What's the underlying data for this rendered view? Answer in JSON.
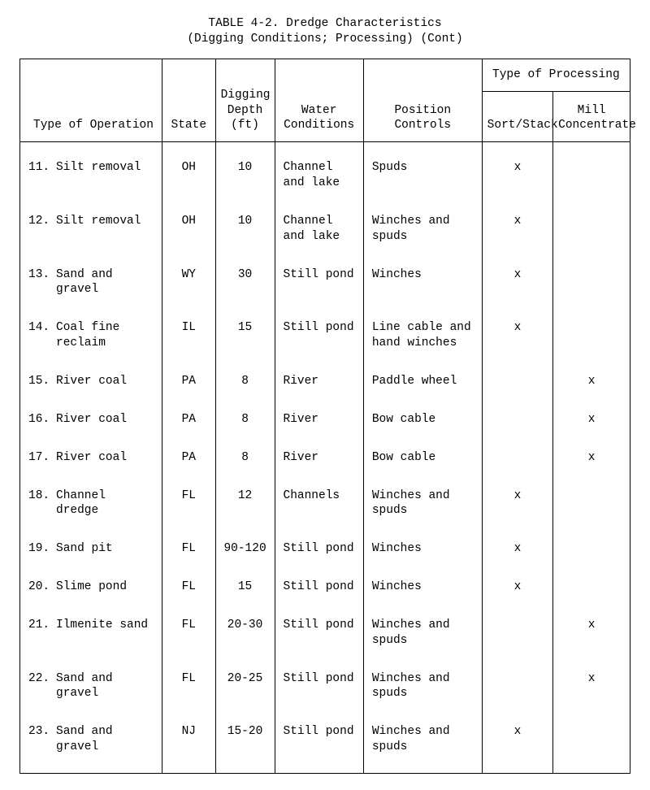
{
  "title_line1": "TABLE 4-2.  Dredge Characteristics",
  "title_line2": "(Digging Conditions; Processing) (Cont)",
  "columns": {
    "operation": "Type of Operation",
    "state": "State",
    "depth_l1": "Digging",
    "depth_l2": "Depth",
    "depth_l3": "(ft)",
    "water_l1": "Water",
    "water_l2": "Conditions",
    "position": "Position Controls",
    "processing_group": "Type of Processing",
    "sort": "Sort/Stack",
    "mill_l1": "Mill",
    "mill_l2": "Concentrate"
  },
  "rows": [
    {
      "num": "11.",
      "op": "Silt removal",
      "state": "OH",
      "depth": "10",
      "water": "Channel and lake",
      "pos": "Spuds",
      "sort": "x",
      "mill": ""
    },
    {
      "num": "12.",
      "op": "Silt removal",
      "state": "OH",
      "depth": "10",
      "water": "Channel and lake",
      "pos": "Winches and spuds",
      "sort": "x",
      "mill": ""
    },
    {
      "num": "13.",
      "op": "Sand and gravel",
      "state": "WY",
      "depth": "30",
      "water": "Still pond",
      "pos": "Winches",
      "sort": "x",
      "mill": ""
    },
    {
      "num": "14.",
      "op": "Coal fine reclaim",
      "state": "IL",
      "depth": "15",
      "water": "Still pond",
      "pos": "Line cable and hand winches",
      "sort": "x",
      "mill": ""
    },
    {
      "num": "15.",
      "op": "River coal",
      "state": "PA",
      "depth": "8",
      "water": "River",
      "pos": "Paddle wheel",
      "sort": "",
      "mill": "x"
    },
    {
      "num": "16.",
      "op": "River coal",
      "state": "PA",
      "depth": "8",
      "water": "River",
      "pos": "Bow cable",
      "sort": "",
      "mill": "x"
    },
    {
      "num": "17.",
      "op": "River coal",
      "state": "PA",
      "depth": "8",
      "water": "River",
      "pos": "Bow cable",
      "sort": "",
      "mill": "x"
    },
    {
      "num": "18.",
      "op": "Channel dredge",
      "state": "FL",
      "depth": "12",
      "water": "Channels",
      "pos": "Winches and spuds",
      "sort": "x",
      "mill": ""
    },
    {
      "num": "19.",
      "op": "Sand pit",
      "state": "FL",
      "depth": "90-120",
      "water": "Still pond",
      "pos": "Winches",
      "sort": "x",
      "mill": ""
    },
    {
      "num": "20.",
      "op": "Slime pond",
      "state": "FL",
      "depth": "15",
      "water": "Still pond",
      "pos": "Winches",
      "sort": "x",
      "mill": ""
    },
    {
      "num": "21.",
      "op": "Ilmenite sand",
      "state": "FL",
      "depth": "20-30",
      "water": "Still pond",
      "pos": "Winches and spuds",
      "sort": "",
      "mill": "x"
    },
    {
      "num": "22.",
      "op": "Sand and gravel",
      "state": "FL",
      "depth": "20-25",
      "water": "Still pond",
      "pos": "Winches and spuds",
      "sort": "",
      "mill": "x"
    },
    {
      "num": "23.",
      "op": "Sand and gravel",
      "state": "NJ",
      "depth": "15-20",
      "water": "Still pond",
      "pos": "Winches and spuds",
      "sort": "x",
      "mill": ""
    }
  ]
}
